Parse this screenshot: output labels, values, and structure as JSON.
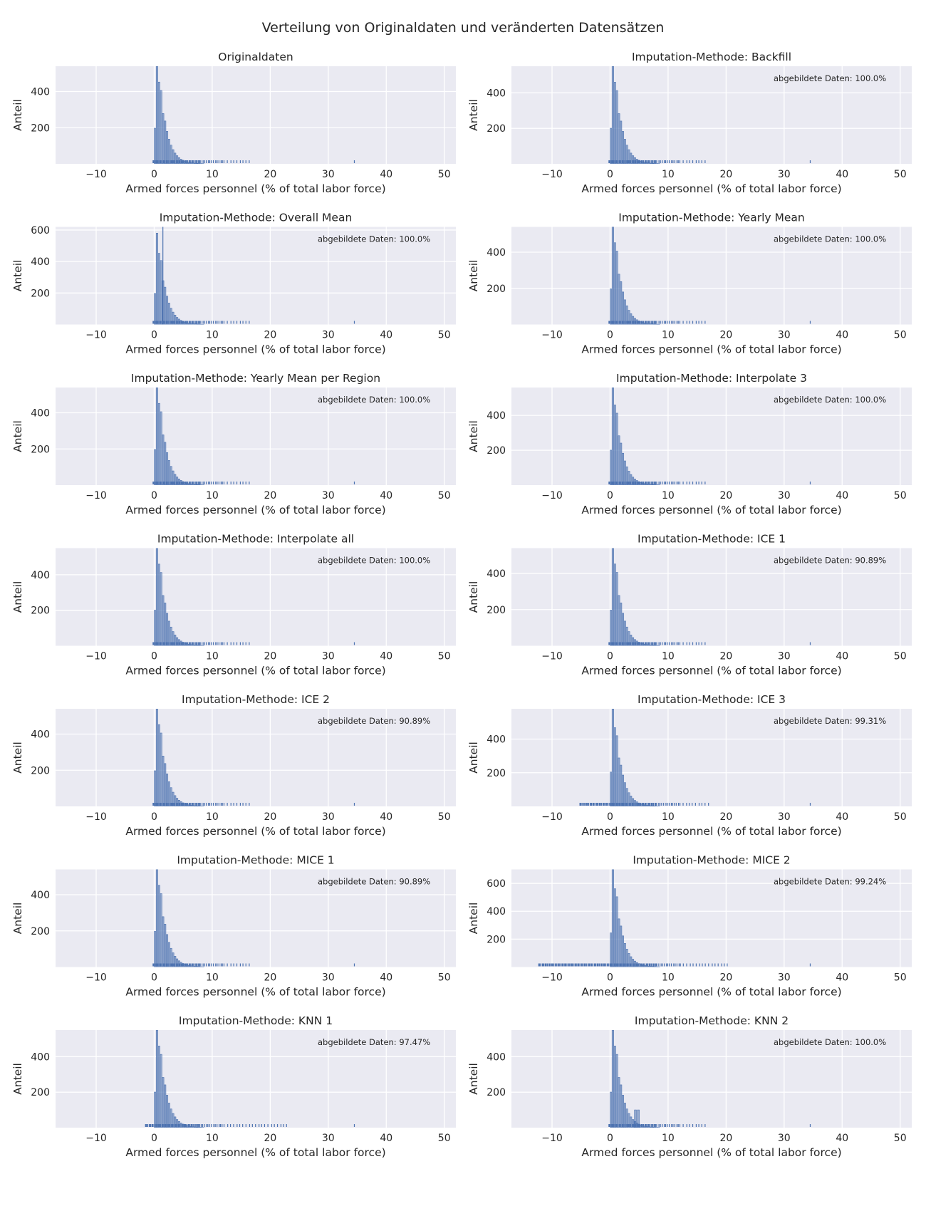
{
  "figure": {
    "suptitle": "Verteilung von Originaldaten und veränderten Datensätzen",
    "plot_bg": "#eaeaf2",
    "grid_color": "#ffffff",
    "bar_color": "#4c72b0"
  },
  "chart_data": [
    {
      "type": "bar",
      "title": "Originaldaten",
      "xlabel": "Armed forces personnel (% of total labor force)",
      "ylabel": "Anteil",
      "xlim": [
        -17,
        52
      ],
      "ylim": [
        0,
        540
      ],
      "x_ticks": [
        -10,
        0,
        10,
        20,
        30,
        40,
        50
      ],
      "y_ticks": [
        200,
        400
      ],
      "annotation": "",
      "bin_width": 0.345,
      "peak": 580,
      "rug_max": 17,
      "rug_min": -0.2,
      "rug_extra": [
        34.5
      ]
    },
    {
      "type": "bar",
      "title": "Imputation-Methode: Backfill",
      "xlabel": "Armed forces personnel (% of total labor force)",
      "ylabel": "Anteil",
      "xlim": [
        -17,
        52
      ],
      "ylim": [
        0,
        550
      ],
      "x_ticks": [
        -10,
        0,
        10,
        20,
        30,
        40,
        50
      ],
      "y_ticks": [
        200,
        400
      ],
      "annotation": "abgebildete Daten: 100.0%",
      "bin_width": 0.345,
      "peak": 590,
      "rug_max": 17,
      "rug_min": -0.2,
      "rug_extra": [
        34.5
      ]
    },
    {
      "type": "bar",
      "title": "Imputation-Methode: Overall Mean",
      "xlabel": "Armed forces personnel (% of total labor force)",
      "ylabel": "Anteil",
      "xlim": [
        -17,
        52
      ],
      "ylim": [
        0,
        620
      ],
      "x_ticks": [
        -10,
        0,
        10,
        20,
        30,
        40,
        50
      ],
      "y_ticks": [
        200,
        400,
        600
      ],
      "annotation": "abgebildete Daten: 100.0%",
      "bin_width": 0.345,
      "peak": 580,
      "spike": {
        "x": 1.5,
        "value": 640
      },
      "rug_max": 17,
      "rug_min": -0.2,
      "rug_extra": [
        34.5
      ]
    },
    {
      "type": "bar",
      "title": "Imputation-Methode: Yearly Mean",
      "xlabel": "Armed forces personnel (% of total labor force)",
      "ylabel": "Anteil",
      "xlim": [
        -17,
        52
      ],
      "ylim": [
        0,
        540
      ],
      "x_ticks": [
        -10,
        0,
        10,
        20,
        30,
        40,
        50
      ],
      "y_ticks": [
        200,
        400
      ],
      "annotation": "abgebildete Daten: 100.0%",
      "bin_width": 0.345,
      "peak": 580,
      "rug_max": 17,
      "rug_min": -0.2,
      "rug_extra": [
        34.5
      ]
    },
    {
      "type": "bar",
      "title": "Imputation-Methode: Yearly Mean per Region",
      "xlabel": "Armed forces personnel (% of total labor force)",
      "ylabel": "Anteil",
      "xlim": [
        -17,
        52
      ],
      "ylim": [
        0,
        540
      ],
      "x_ticks": [
        -10,
        0,
        10,
        20,
        30,
        40,
        50
      ],
      "y_ticks": [
        200,
        400
      ],
      "annotation": "abgebildete Daten: 100.0%",
      "bin_width": 0.345,
      "peak": 580,
      "rug_max": 17,
      "rug_min": -0.2,
      "rug_extra": [
        34.5
      ]
    },
    {
      "type": "bar",
      "title": "Imputation-Methode: Interpolate 3",
      "xlabel": "Armed forces personnel (% of total labor force)",
      "ylabel": "Anteil",
      "xlim": [
        -17,
        52
      ],
      "ylim": [
        0,
        560
      ],
      "x_ticks": [
        -10,
        0,
        10,
        20,
        30,
        40,
        50
      ],
      "y_ticks": [
        200,
        400
      ],
      "annotation": "abgebildete Daten: 100.0%",
      "bin_width": 0.345,
      "peak": 590,
      "rug_max": 17,
      "rug_min": -0.2,
      "rug_extra": [
        34.5
      ]
    },
    {
      "type": "bar",
      "title": "Imputation-Methode: Interpolate all",
      "xlabel": "Armed forces personnel (% of total labor force)",
      "ylabel": "Anteil",
      "xlim": [
        -17,
        52
      ],
      "ylim": [
        0,
        550
      ],
      "x_ticks": [
        -10,
        0,
        10,
        20,
        30,
        40,
        50
      ],
      "y_ticks": [
        200,
        400
      ],
      "annotation": "abgebildete Daten: 100.0%",
      "bin_width": 0.345,
      "peak": 590,
      "rug_max": 17,
      "rug_min": -0.2,
      "rug_extra": [
        34.5
      ]
    },
    {
      "type": "bar",
      "title": "Imputation-Methode: ICE 1",
      "xlabel": "Armed forces personnel (% of total labor force)",
      "ylabel": "Anteil",
      "xlim": [
        -17,
        52
      ],
      "ylim": [
        0,
        540
      ],
      "x_ticks": [
        -10,
        0,
        10,
        20,
        30,
        40,
        50
      ],
      "y_ticks": [
        200,
        400
      ],
      "annotation": "abgebildete Daten: 90.89%",
      "bin_width": 0.345,
      "peak": 580,
      "rug_max": 17,
      "rug_min": -0.2,
      "rug_extra": [
        34.5
      ]
    },
    {
      "type": "bar",
      "title": "Imputation-Methode: ICE 2",
      "xlabel": "Armed forces personnel (% of total labor force)",
      "ylabel": "Anteil",
      "xlim": [
        -17,
        52
      ],
      "ylim": [
        0,
        540
      ],
      "x_ticks": [
        -10,
        0,
        10,
        20,
        30,
        40,
        50
      ],
      "y_ticks": [
        200,
        400
      ],
      "annotation": "abgebildete Daten: 90.89%",
      "bin_width": 0.345,
      "peak": 580,
      "rug_max": 17,
      "rug_min": -0.2,
      "rug_extra": [
        34.5
      ]
    },
    {
      "type": "bar",
      "title": "Imputation-Methode: ICE 3",
      "xlabel": "Armed forces personnel (% of total labor force)",
      "ylabel": "Anteil",
      "xlim": [
        -17,
        52
      ],
      "ylim": [
        0,
        580
      ],
      "x_ticks": [
        -10,
        0,
        10,
        20,
        30,
        40,
        50
      ],
      "y_ticks": [
        200,
        400
      ],
      "annotation": "abgebildete Daten: 99.31%",
      "bin_width": 0.345,
      "peak": 600,
      "rug_max": 17,
      "rug_min": -5.2,
      "rug_extra": [
        34.5
      ]
    },
    {
      "type": "bar",
      "title": "Imputation-Methode: MICE 1",
      "xlabel": "Armed forces personnel (% of total labor force)",
      "ylabel": "Anteil",
      "xlim": [
        -17,
        52
      ],
      "ylim": [
        0,
        540
      ],
      "x_ticks": [
        -10,
        0,
        10,
        20,
        30,
        40,
        50
      ],
      "y_ticks": [
        200,
        400
      ],
      "annotation": "abgebildete Daten: 90.89%",
      "bin_width": 0.345,
      "peak": 580,
      "rug_max": 17,
      "rug_min": -0.2,
      "rug_extra": [
        34.5
      ]
    },
    {
      "type": "bar",
      "title": "Imputation-Methode: MICE 2",
      "xlabel": "Armed forces personnel (% of total labor force)",
      "ylabel": "Anteil",
      "xlim": [
        -17,
        52
      ],
      "ylim": [
        0,
        700
      ],
      "x_ticks": [
        -10,
        0,
        10,
        20,
        30,
        40,
        50
      ],
      "y_ticks": [
        200,
        400,
        600
      ],
      "annotation": "abgebildete Daten: 99.24%",
      "bin_width": 0.345,
      "peak": 720,
      "rug_max": 20.5,
      "rug_min": -12.3,
      "rug_extra": [
        34.5
      ]
    },
    {
      "type": "bar",
      "title": "Imputation-Methode: KNN 1",
      "xlabel": "Armed forces personnel (% of total labor force)",
      "ylabel": "Anteil",
      "xlim": [
        -17,
        52
      ],
      "ylim": [
        0,
        550
      ],
      "x_ticks": [
        -10,
        0,
        10,
        20,
        30,
        40,
        50
      ],
      "y_ticks": [
        200,
        400
      ],
      "annotation": "abgebildete Daten: 97.47%",
      "bin_width": 0.345,
      "peak": 590,
      "rug_max": 23,
      "rug_min": -1.5,
      "rug_extra": [
        34.5
      ]
    },
    {
      "type": "bar",
      "title": "Imputation-Methode: KNN 2",
      "xlabel": "Armed forces personnel (% of total labor force)",
      "ylabel": "Anteil",
      "xlim": [
        -17,
        52
      ],
      "ylim": [
        0,
        550
      ],
      "x_ticks": [
        -10,
        0,
        10,
        20,
        30,
        40,
        50
      ],
      "y_ticks": [
        200,
        400
      ],
      "annotation": "abgebildete Daten: 100.0%",
      "bin_width": 0.345,
      "peak": 590,
      "extra_bars": [
        {
          "x": 4.2,
          "value": 100
        },
        {
          "x": 4.7,
          "value": 100
        }
      ],
      "rug_max": 17,
      "rug_min": -0.2,
      "rug_extra": [
        34.5
      ]
    }
  ]
}
